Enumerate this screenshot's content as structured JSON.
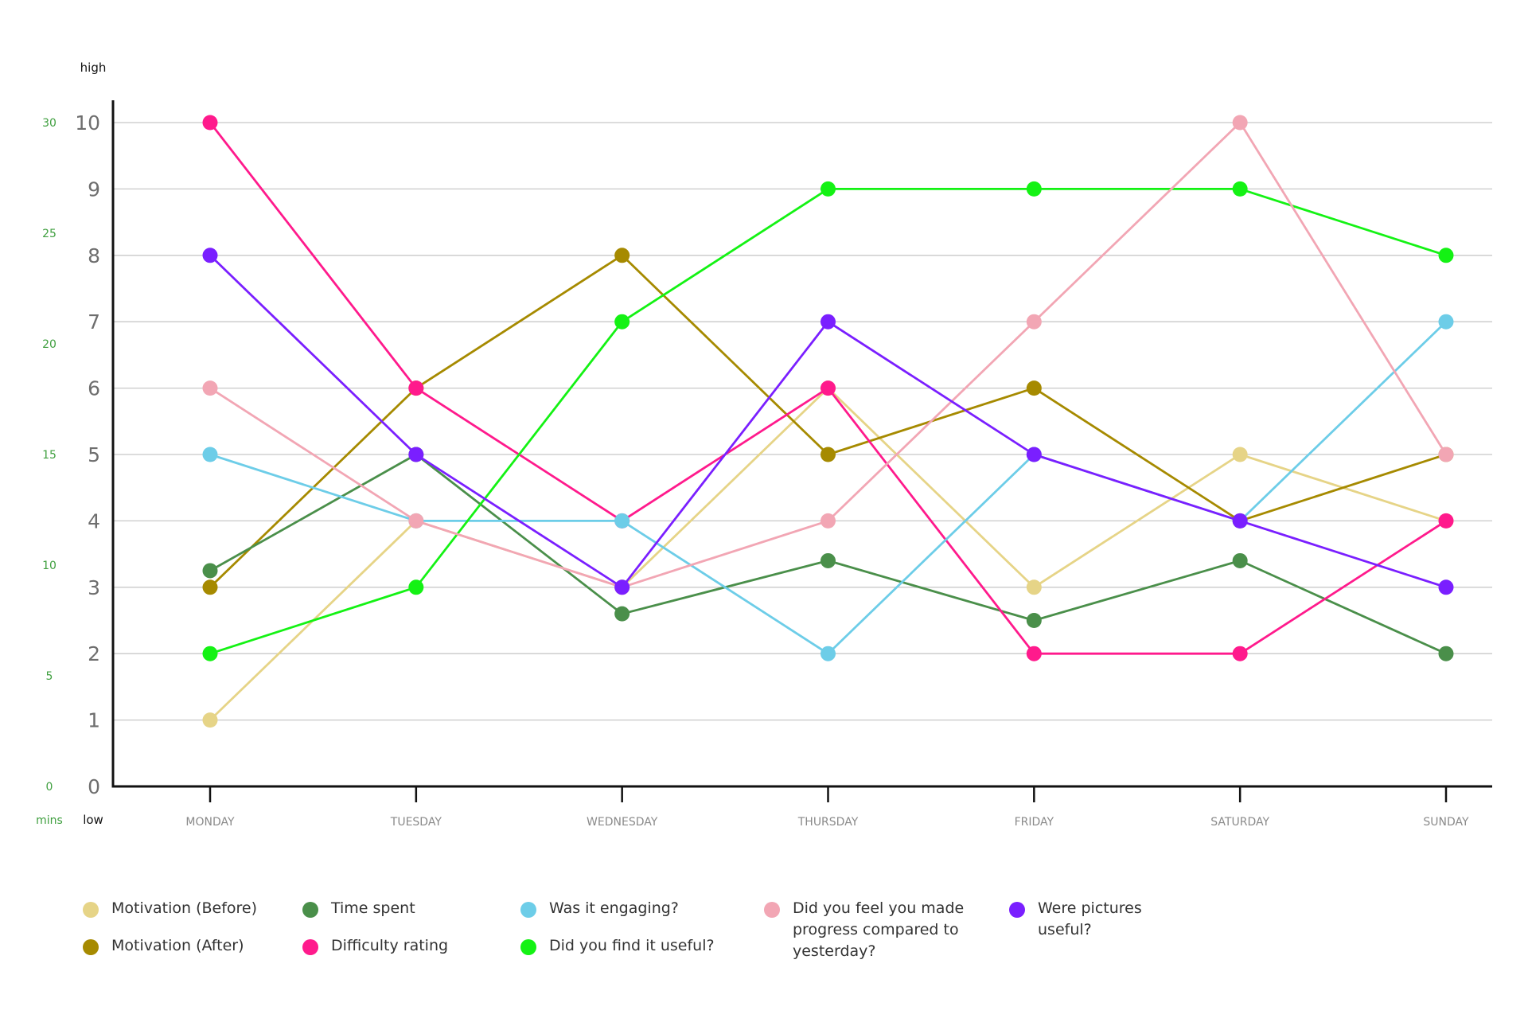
{
  "chart_data": {
    "type": "line",
    "categories": [
      "MONDAY",
      "TUESDAY",
      "WEDNESDAY",
      "THURSDAY",
      "FRIDAY",
      "SATURDAY",
      "SUNDAY"
    ],
    "y_ticks": [
      "0",
      "1",
      "2",
      "3",
      "4",
      "5",
      "6",
      "7",
      "8",
      "9",
      "10"
    ],
    "ylim": [
      0,
      10
    ],
    "y_top_label": "high",
    "y_bottom_label": "low",
    "secondary_axis": {
      "unit_label": "mins",
      "ticks": [
        "0",
        "5",
        "10",
        "15",
        "20",
        "25",
        "30"
      ],
      "range": [
        0,
        30
      ],
      "color": "#3f9f3f"
    },
    "grid": true,
    "legend_position": "bottom",
    "series": [
      {
        "name": "Motivation (Before)",
        "color": "#e6d487",
        "values": [
          1,
          4,
          3,
          6,
          3,
          5,
          4
        ]
      },
      {
        "name": "Motivation (After)",
        "color": "#a68a00",
        "values": [
          3,
          6,
          8,
          5,
          6,
          4,
          5
        ]
      },
      {
        "name": "Time spent",
        "color": "#4a8f4a",
        "values": [
          3.25,
          5,
          2.6,
          3.4,
          2.5,
          3.4,
          2
        ]
      },
      {
        "name": "Difficulty rating",
        "color": "#ff1a8c",
        "values": [
          10,
          6,
          4,
          6,
          2,
          2,
          4
        ]
      },
      {
        "name": "Was it engaging?",
        "color": "#6dcde8",
        "values": [
          5,
          4,
          4,
          2,
          5,
          4,
          7
        ]
      },
      {
        "name": "Did you find it useful?",
        "color": "#14f214",
        "values": [
          2,
          3,
          7,
          9,
          9,
          9,
          8
        ]
      },
      {
        "name": "Did you feel you made progress compared to yesterday?",
        "color": "#f2a6b4",
        "values": [
          6,
          4,
          3,
          4,
          7,
          10,
          5
        ]
      },
      {
        "name": "Were pictures useful?",
        "color": "#7a1fff",
        "values": [
          8,
          5,
          3,
          7,
          5,
          4,
          3
        ]
      }
    ]
  },
  "legend": [
    {
      "label": "Motivation (Before)",
      "color": "#e6d487"
    },
    {
      "label": "Motivation (After)",
      "color": "#a68a00"
    },
    {
      "label": "Time spent",
      "color": "#4a8f4a"
    },
    {
      "label": "Difficulty rating",
      "color": "#ff1a8c"
    },
    {
      "label": "Was it engaging?",
      "color": "#6dcde8"
    },
    {
      "label": "Did you find it useful?",
      "color": "#14f214"
    },
    {
      "label": "Did you feel you made\nprogress compared to\nyesterday?",
      "color": "#f2a6b4"
    },
    {
      "label": "Were pictures\nuseful?",
      "color": "#7a1fff"
    }
  ]
}
